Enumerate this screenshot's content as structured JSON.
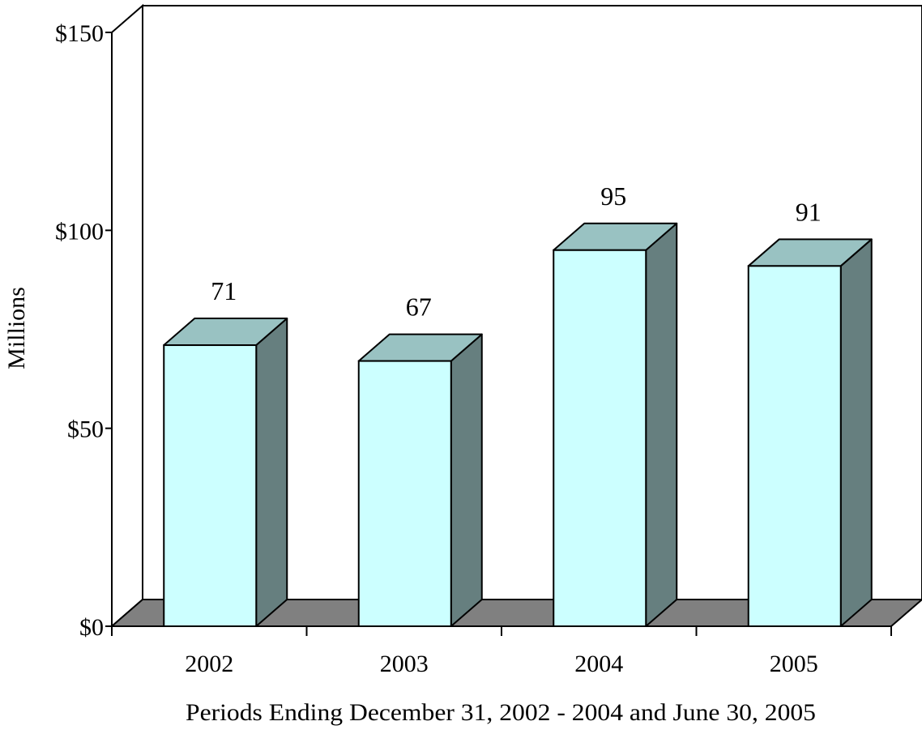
{
  "chart_data": {
    "type": "bar",
    "categories": [
      "2002",
      "2003",
      "2004",
      "2005"
    ],
    "values": [
      71,
      67,
      95,
      91
    ],
    "data_labels": [
      "71",
      "67",
      "95",
      "91"
    ],
    "title": "",
    "xlabel": "Periods Ending December 31, 2002 - 2004 and June 30, 2005",
    "ylabel": "Millions",
    "ylim": [
      0,
      150
    ],
    "yticks": [
      0,
      50,
      100,
      150
    ],
    "ytick_labels": [
      "$0",
      "$50",
      "$100",
      "$150"
    ],
    "grid": false,
    "legend": "none",
    "style": "3d-bar",
    "colors": {
      "bar_front": "#ccffff",
      "bar_top": "#99c2c2",
      "bar_side": "#667f7f",
      "floor": "#808080",
      "outline": "#000000"
    }
  }
}
